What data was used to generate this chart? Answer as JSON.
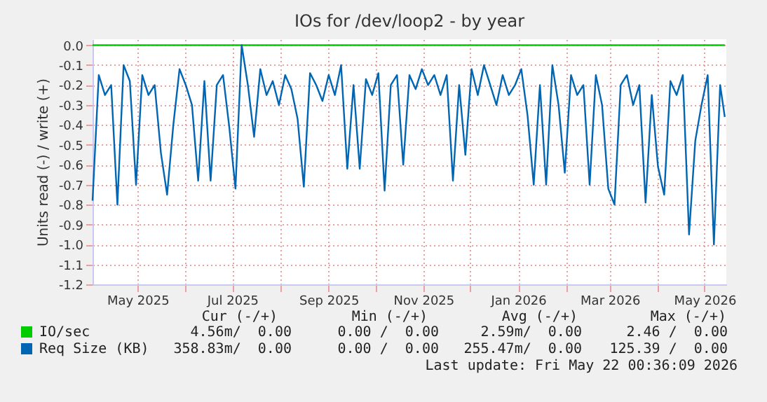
{
  "chart_data": {
    "type": "line",
    "title": "IOs for /dev/loop2 - by year",
    "ylabel": "Units read (-) / write (+)",
    "xlim": [
      "2025-04-02",
      "2026-05-15"
    ],
    "xticks": [
      {
        "value": "2025-05-01",
        "label": "May 2025"
      },
      {
        "value": "2025-06-01",
        "label": null
      },
      {
        "value": "2025-07-01",
        "label": "Jul 2025"
      },
      {
        "value": "2025-08-01",
        "label": null
      },
      {
        "value": "2025-09-01",
        "label": "Sep 2025"
      },
      {
        "value": "2025-10-01",
        "label": null
      },
      {
        "value": "2025-11-01",
        "label": "Nov 2025"
      },
      {
        "value": "2025-12-01",
        "label": null
      },
      {
        "value": "2026-01-01",
        "label": "Jan 2026"
      },
      {
        "value": "2026-02-01",
        "label": null
      },
      {
        "value": "2026-03-01",
        "label": "Mar 2026"
      },
      {
        "value": "2026-04-01",
        "label": null
      },
      {
        "value": "2026-05-01",
        "label": "May 2026"
      }
    ],
    "ylim": [
      -1.2,
      0.03
    ],
    "yticks": [
      {
        "value": 0,
        "label": "0.0"
      },
      -0.1,
      -0.2,
      -0.3,
      -0.4,
      -0.5,
      -0.6,
      -0.7,
      -0.8,
      -0.9,
      {
        "value": -1,
        "label": "-1.0"
      },
      -1.1,
      -1.2
    ],
    "grid": true,
    "legend": "bottom",
    "line_style": "solid",
    "series": [
      {
        "name": "IO/sec",
        "color": "#00cc00",
        "x": [
          "2025-04-02",
          "2026-05-14"
        ],
        "values": [
          0,
          0
        ]
      },
      {
        "name": "Req Size (KB)",
        "color": "#0066b3",
        "x": [
          "2025-04-02",
          "2025-04-06",
          "2025-04-10",
          "2025-04-14",
          "2025-04-18",
          "2025-04-22",
          "2025-04-26",
          "2025-04-30",
          "2025-05-04",
          "2025-05-08",
          "2025-05-12",
          "2025-05-16",
          "2025-05-20",
          "2025-05-24",
          "2025-05-28",
          "2025-06-01",
          "2025-06-05",
          "2025-06-09",
          "2025-06-13",
          "2025-06-17",
          "2025-06-21",
          "2025-06-25",
          "2025-06-29",
          "2025-07-03",
          "2025-07-07",
          "2025-07-11",
          "2025-07-15",
          "2025-07-19",
          "2025-07-23",
          "2025-07-27",
          "2025-07-31",
          "2025-08-04",
          "2025-08-08",
          "2025-08-12",
          "2025-08-16",
          "2025-08-20",
          "2025-08-24",
          "2025-08-28",
          "2025-09-01",
          "2025-09-05",
          "2025-09-09",
          "2025-09-13",
          "2025-09-17",
          "2025-09-21",
          "2025-09-25",
          "2025-09-29",
          "2025-10-03",
          "2025-10-07",
          "2025-10-11",
          "2025-10-15",
          "2025-10-19",
          "2025-10-23",
          "2025-10-27",
          "2025-10-31",
          "2025-11-04",
          "2025-11-08",
          "2025-11-12",
          "2025-11-16",
          "2025-11-20",
          "2025-11-24",
          "2025-11-28",
          "2025-12-02",
          "2025-12-06",
          "2025-12-10",
          "2025-12-14",
          "2025-12-18",
          "2025-12-22",
          "2025-12-26",
          "2025-12-30",
          "2026-01-03",
          "2026-01-07",
          "2026-01-11",
          "2026-01-15",
          "2026-01-19",
          "2026-01-23",
          "2026-01-27",
          "2026-01-31",
          "2026-02-04",
          "2026-02-08",
          "2026-02-12",
          "2026-02-16",
          "2026-02-20",
          "2026-02-24",
          "2026-02-28",
          "2026-03-04",
          "2026-03-08",
          "2026-03-12",
          "2026-03-16",
          "2026-03-20",
          "2026-03-24",
          "2026-03-28",
          "2026-04-01",
          "2026-04-05",
          "2026-04-09",
          "2026-04-13",
          "2026-04-17",
          "2026-04-21",
          "2026-04-25",
          "2026-04-29",
          "2026-05-03",
          "2026-05-07",
          "2026-05-11",
          "2026-05-14"
        ],
        "values": [
          -0.78,
          -0.15,
          -0.25,
          -0.2,
          -0.8,
          -0.1,
          -0.18,
          -0.7,
          -0.15,
          -0.25,
          -0.2,
          -0.54,
          -0.75,
          -0.4,
          -0.12,
          -0.2,
          -0.3,
          -0.68,
          -0.18,
          -0.68,
          -0.2,
          -0.15,
          -0.41,
          -0.72,
          0,
          -0.2,
          -0.46,
          -0.12,
          -0.25,
          -0.18,
          -0.3,
          -0.15,
          -0.22,
          -0.37,
          -0.71,
          -0.14,
          -0.2,
          -0.28,
          -0.15,
          -0.25,
          -0.1,
          -0.62,
          -0.2,
          -0.62,
          -0.17,
          -0.25,
          -0.14,
          -0.73,
          -0.2,
          -0.15,
          -0.6,
          -0.15,
          -0.22,
          -0.12,
          -0.2,
          -0.15,
          -0.25,
          -0.15,
          -0.68,
          -0.2,
          -0.55,
          -0.12,
          -0.25,
          -0.1,
          -0.2,
          -0.3,
          -0.15,
          -0.25,
          -0.2,
          -0.12,
          -0.35,
          -0.7,
          -0.2,
          -0.7,
          -0.1,
          -0.3,
          -0.64,
          -0.15,
          -0.25,
          -0.2,
          -0.7,
          -0.15,
          -0.3,
          -0.72,
          -0.8,
          -0.2,
          -0.15,
          -0.3,
          -0.2,
          -0.79,
          -0.25,
          -0.61,
          -0.75,
          -0.18,
          -0.25,
          -0.15,
          -0.95,
          -0.48,
          -0.3,
          -0.15,
          -1.0,
          -0.2,
          -0.36
        ]
      }
    ],
    "annotations": [
      "Cur (-/+)",
      "Min (-/+)",
      "Avg (-/+)",
      "Max (-/+)",
      "4.56m/  0.00",
      "0.00 /  0.00",
      "2.59m/  0.00",
      "2.46 /  0.00",
      "358.83m/  0.00",
      "0.00 /  0.00",
      "255.47m/  0.00",
      "125.39 /  0.00",
      "Last update: Fri May 22 00:36:09 2026"
    ]
  }
}
